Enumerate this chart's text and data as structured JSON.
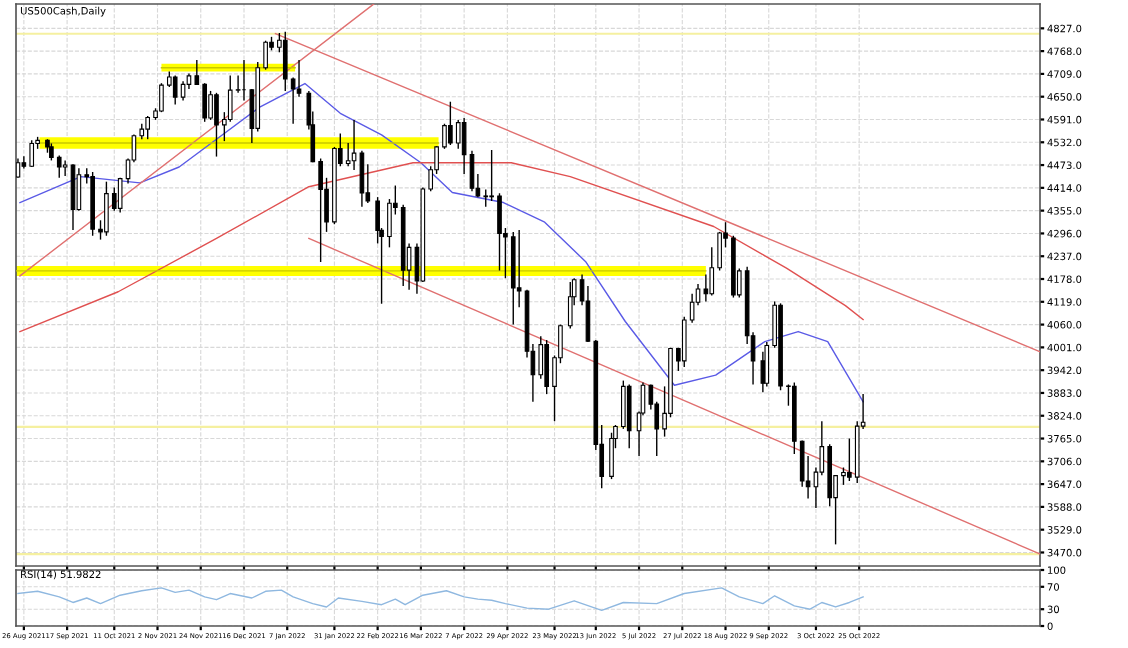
{
  "chart_data": [
    {
      "type": "candlestick",
      "title": "US500Cash,Daily",
      "grid": true,
      "tick_labels": "y",
      "xlim": [
        "2021-08-22",
        "2023-01-25"
      ],
      "ylim": [
        3435,
        4890
      ],
      "yticks": [
        {
          "value": 3470,
          "label": "3470.0"
        },
        {
          "value": 3529,
          "label": "3529.0"
        },
        {
          "value": 3588,
          "label": "3588.0"
        },
        {
          "value": 3647,
          "label": "3647.0"
        },
        {
          "value": 3706,
          "label": "3706.0"
        },
        {
          "value": 3765,
          "label": "3765.0"
        },
        {
          "value": 3824,
          "label": "3824.0"
        },
        {
          "value": 3883,
          "label": "3883.0"
        },
        {
          "value": 3942,
          "label": "3942.0"
        },
        {
          "value": 4001,
          "label": "4001.0"
        },
        {
          "value": 4060,
          "label": "4060.0"
        },
        {
          "value": 4119,
          "label": "4119.0"
        },
        {
          "value": 4178,
          "label": "4178.0"
        },
        {
          "value": 4237,
          "label": "4237.0"
        },
        {
          "value": 4296,
          "label": "4296.0"
        },
        {
          "value": 4355,
          "label": "4355.0"
        },
        {
          "value": 4414,
          "label": "4414.0"
        },
        {
          "value": 4473,
          "label": "4473.0"
        },
        {
          "value": 4532,
          "label": "4532.0"
        },
        {
          "value": 4591,
          "label": "4591.0"
        },
        {
          "value": 4650,
          "label": "4650.0"
        },
        {
          "value": 4709,
          "label": "4709.0"
        },
        {
          "value": 4768,
          "label": "4768.0"
        },
        {
          "value": 4827,
          "label": "4827.0"
        }
      ],
      "x": [
        "2021-08-23",
        "2021-08-26",
        "2021-08-30",
        "2021-09-02",
        "2021-09-07",
        "2021-09-09",
        "2021-09-13",
        "2021-09-16",
        "2021-09-20",
        "2021-09-23",
        "2021-09-27",
        "2021-09-30",
        "2021-10-04",
        "2021-10-07",
        "2021-10-11",
        "2021-10-14",
        "2021-10-18",
        "2021-10-21",
        "2021-10-25",
        "2021-10-28",
        "2021-11-01",
        "2021-11-04",
        "2021-11-08",
        "2021-11-11",
        "2021-11-15",
        "2021-11-18",
        "2021-11-22",
        "2021-11-26",
        "2021-11-29",
        "2021-12-02",
        "2021-12-06",
        "2021-12-09",
        "2021-12-13",
        "2021-12-16",
        "2021-12-20",
        "2021-12-23",
        "2021-12-27",
        "2021-12-30",
        "2022-01-03",
        "2022-01-06",
        "2022-01-10",
        "2022-01-13",
        "2022-01-18",
        "2022-01-20",
        "2022-01-24",
        "2022-01-27",
        "2022-01-31",
        "2022-02-03",
        "2022-02-07",
        "2022-02-10",
        "2022-02-14",
        "2022-02-17",
        "2022-02-22",
        "2022-02-24",
        "2022-02-28",
        "2022-03-03",
        "2022-03-07",
        "2022-03-10",
        "2022-03-14",
        "2022-03-17",
        "2022-03-21",
        "2022-03-24",
        "2022-03-28",
        "2022-03-31",
        "2022-04-04",
        "2022-04-07",
        "2022-04-11",
        "2022-04-14",
        "2022-04-18",
        "2022-04-21",
        "2022-04-25",
        "2022-04-28",
        "2022-05-02",
        "2022-05-05",
        "2022-05-09",
        "2022-05-12",
        "2022-05-16",
        "2022-05-19",
        "2022-05-23",
        "2022-05-26",
        "2022-05-31",
        "2022-06-02",
        "2022-06-06",
        "2022-06-09",
        "2022-06-13",
        "2022-06-16",
        "2022-06-21",
        "2022-06-23",
        "2022-06-27",
        "2022-06-30",
        "2022-07-05",
        "2022-07-07",
        "2022-07-11",
        "2022-07-14",
        "2022-07-18",
        "2022-07-21",
        "2022-07-25",
        "2022-07-28",
        "2022-08-01",
        "2022-08-04",
        "2022-08-08",
        "2022-08-11",
        "2022-08-15",
        "2022-08-18",
        "2022-08-22",
        "2022-08-25",
        "2022-08-29",
        "2022-09-01",
        "2022-09-06",
        "2022-09-08",
        "2022-09-12",
        "2022-09-15",
        "2022-09-19",
        "2022-09-22",
        "2022-09-26",
        "2022-09-29",
        "2022-10-03",
        "2022-10-06",
        "2022-10-10",
        "2022-10-13",
        "2022-10-17",
        "2022-10-20",
        "2022-10-24",
        "2022-10-27"
      ],
      "ohlc": [
        [
          4442,
          4490,
          4440,
          4479
        ],
        [
          4479,
          4496,
          4464,
          4470
        ],
        [
          4470,
          4537,
          4468,
          4529
        ],
        [
          4529,
          4546,
          4515,
          4537
        ],
        [
          4537,
          4540,
          4505,
          4520
        ],
        [
          4520,
          4529,
          4485,
          4493
        ],
        [
          4493,
          4498,
          4440,
          4468
        ],
        [
          4468,
          4485,
          4445,
          4473
        ],
        [
          4473,
          4475,
          4305,
          4358
        ],
        [
          4358,
          4465,
          4355,
          4448
        ],
        [
          4448,
          4465,
          4425,
          4443
        ],
        [
          4443,
          4455,
          4290,
          4307
        ],
        [
          4307,
          4330,
          4280,
          4300
        ],
        [
          4300,
          4430,
          4290,
          4399
        ],
        [
          4399,
          4415,
          4355,
          4361
        ],
        [
          4361,
          4440,
          4350,
          4438
        ],
        [
          4438,
          4490,
          4425,
          4486
        ],
        [
          4486,
          4552,
          4480,
          4549
        ],
        [
          4549,
          4580,
          4540,
          4566
        ],
        [
          4566,
          4600,
          4540,
          4596
        ],
        [
          4596,
          4620,
          4590,
          4613
        ],
        [
          4613,
          4685,
          4610,
          4680
        ],
        [
          4680,
          4715,
          4675,
          4701
        ],
        [
          4701,
          4705,
          4630,
          4649
        ],
        [
          4649,
          4690,
          4640,
          4682
        ],
        [
          4682,
          4710,
          4670,
          4704
        ],
        [
          4704,
          4745,
          4680,
          4682
        ],
        [
          4682,
          4685,
          4585,
          4595
        ],
        [
          4595,
          4665,
          4590,
          4655
        ],
        [
          4655,
          4660,
          4495,
          4577
        ],
        [
          4577,
          4610,
          4535,
          4591
        ],
        [
          4591,
          4705,
          4585,
          4667
        ],
        [
          4667,
          4705,
          4660,
          4668
        ],
        [
          4668,
          4745,
          4640,
          4668
        ],
        [
          4668,
          4670,
          4530,
          4568
        ],
        [
          4568,
          4740,
          4560,
          4725
        ],
        [
          4725,
          4795,
          4720,
          4791
        ],
        [
          4791,
          4805,
          4770,
          4778
        ],
        [
          4778,
          4815,
          4765,
          4796
        ],
        [
          4796,
          4818,
          4665,
          4696
        ],
        [
          4696,
          4700,
          4580,
          4670
        ],
        [
          4670,
          4745,
          4650,
          4659
        ],
        [
          4659,
          4665,
          4565,
          4577
        ],
        [
          4577,
          4612,
          4480,
          4482
        ],
        [
          4482,
          4490,
          4222,
          4410
        ],
        [
          4410,
          4440,
          4300,
          4326
        ],
        [
          4326,
          4520,
          4320,
          4516
        ],
        [
          4516,
          4555,
          4470,
          4477
        ],
        [
          4477,
          4530,
          4470,
          4484
        ],
        [
          4484,
          4590,
          4460,
          4504
        ],
        [
          4504,
          4510,
          4365,
          4401
        ],
        [
          4401,
          4475,
          4375,
          4380
        ],
        [
          4380,
          4390,
          4270,
          4304
        ],
        [
          4304,
          4310,
          4114,
          4288
        ],
        [
          4288,
          4385,
          4260,
          4374
        ],
        [
          4374,
          4420,
          4345,
          4363
        ],
        [
          4363,
          4370,
          4160,
          4201
        ],
        [
          4201,
          4270,
          4150,
          4260
        ],
        [
          4260,
          4270,
          4140,
          4173
        ],
        [
          4173,
          4415,
          4170,
          4411
        ],
        [
          4411,
          4470,
          4405,
          4461
        ],
        [
          4461,
          4522,
          4450,
          4520
        ],
        [
          4520,
          4580,
          4515,
          4575
        ],
        [
          4575,
          4637,
          4525,
          4530
        ],
        [
          4530,
          4590,
          4515,
          4583
        ],
        [
          4583,
          4595,
          4450,
          4500
        ],
        [
          4500,
          4510,
          4405,
          4413
        ],
        [
          4413,
          4450,
          4390,
          4393
        ],
        [
          4393,
          4410,
          4365,
          4391
        ],
        [
          4391,
          4512,
          4380,
          4393
        ],
        [
          4393,
          4400,
          4200,
          4296
        ],
        [
          4296,
          4310,
          4180,
          4287
        ],
        [
          4287,
          4300,
          4060,
          4155
        ],
        [
          4155,
          4305,
          4105,
          4147
        ],
        [
          4147,
          4150,
          3975,
          3991
        ],
        [
          3991,
          4010,
          3860,
          3930
        ],
        [
          3930,
          4030,
          3920,
          4008
        ],
        [
          4008,
          4020,
          3880,
          3900
        ],
        [
          3900,
          3980,
          3810,
          3974
        ],
        [
          3974,
          4060,
          3960,
          4057
        ],
        [
          4057,
          4170,
          4050,
          4132
        ],
        [
          4132,
          4180,
          4110,
          4176
        ],
        [
          4176,
          4190,
          4110,
          4121
        ],
        [
          4121,
          4160,
          4015,
          4017
        ],
        [
          4017,
          4020,
          3735,
          3750
        ],
        [
          3750,
          3800,
          3636,
          3667
        ],
        [
          3667,
          3780,
          3660,
          3765
        ],
        [
          3765,
          3800,
          3740,
          3796
        ],
        [
          3796,
          3915,
          3790,
          3900
        ],
        [
          3900,
          3905,
          3740,
          3785
        ],
        [
          3785,
          3835,
          3720,
          3831
        ],
        [
          3831,
          3910,
          3825,
          3903
        ],
        [
          3903,
          3905,
          3840,
          3854
        ],
        [
          3854,
          3860,
          3720,
          3790
        ],
        [
          3790,
          3900,
          3770,
          3830
        ],
        [
          3830,
          4000,
          3820,
          3998
        ],
        [
          3998,
          4000,
          3940,
          3966
        ],
        [
          3966,
          4080,
          3950,
          4072
        ],
        [
          4072,
          4140,
          4065,
          4118
        ],
        [
          4118,
          4165,
          4110,
          4152
        ],
        [
          4152,
          4190,
          4120,
          4140
        ],
        [
          4140,
          4260,
          4135,
          4207
        ],
        [
          4207,
          4300,
          4200,
          4297
        ],
        [
          4297,
          4325,
          4260,
          4284
        ],
        [
          4284,
          4290,
          4130,
          4137
        ],
        [
          4137,
          4205,
          4130,
          4199
        ],
        [
          4199,
          4210,
          4010,
          4031
        ],
        [
          4031,
          4040,
          3905,
          3966
        ],
        [
          3966,
          3990,
          3885,
          3908
        ],
        [
          3908,
          4015,
          3900,
          4006
        ],
        [
          4006,
          4120,
          4000,
          4110
        ],
        [
          4110,
          4115,
          3890,
          3901
        ],
        [
          3901,
          3905,
          3850,
          3900
        ],
        [
          3900,
          3910,
          3725,
          3758
        ],
        [
          3758,
          3760,
          3640,
          3655
        ],
        [
          3655,
          3720,
          3610,
          3640
        ],
        [
          3640,
          3690,
          3585,
          3678
        ],
        [
          3678,
          3810,
          3670,
          3744
        ],
        [
          3744,
          3750,
          3590,
          3612
        ],
        [
          3612,
          3670,
          3491,
          3669
        ],
        [
          3669,
          3690,
          3645,
          3677
        ],
        [
          3677,
          3765,
          3655,
          3665
        ],
        [
          3665,
          3810,
          3650,
          3797
        ],
        [
          3797,
          3880,
          3790,
          3807
        ]
      ],
      "series": [
        {
          "type": "line",
          "color": "#5a5ae6",
          "x": [
            "2021-08-24",
            "2021-09-24",
            "2021-10-24",
            "2021-11-13",
            "2021-12-24",
            "2022-01-16",
            "2022-02-03",
            "2022-02-24",
            "2022-03-16",
            "2022-04-01",
            "2022-04-27",
            "2022-05-18",
            "2022-06-08",
            "2022-06-28",
            "2022-07-23",
            "2022-08-13",
            "2022-09-07",
            "2022-09-24",
            "2022-10-09",
            "2022-10-27"
          ],
          "values": [
            4376,
            4443,
            4427,
            4468,
            4623,
            4684,
            4607,
            4551,
            4479,
            4402,
            4376,
            4325,
            4222,
            4068,
            3903,
            3929,
            4016,
            4042,
            4016,
            3860
          ]
        },
        {
          "type": "line",
          "color": "#e05050",
          "x": [
            "2021-08-24",
            "2021-10-13",
            "2021-12-02",
            "2022-01-18",
            "2022-03-12",
            "2022-05-01",
            "2022-05-31",
            "2022-08-12",
            "2022-09-18",
            "2022-10-18",
            "2022-10-27"
          ],
          "values": [
            4042,
            4145,
            4283,
            4417,
            4479,
            4479,
            4443,
            4314,
            4206,
            4109,
            4073
          ]
        },
        {
          "type": "line",
          "color": "#e07070",
          "x": [
            "2022-01-01",
            "2023-01-25"
          ],
          "values": [
            4813,
            3990
          ]
        },
        {
          "type": "line",
          "color": "#e07070",
          "x": [
            "2022-01-18",
            "2023-01-25"
          ],
          "values": [
            4283,
            3466
          ]
        },
        {
          "type": "line",
          "color": "#e07070",
          "x": [
            "2021-08-24",
            "2022-02-20"
          ],
          "values": [
            4186,
            4890
          ]
        },
        {
          "type": "line",
          "color": "#c8c800",
          "x": [
            "2021-11-04",
            "2022-01-11"
          ],
          "values": [
            4725,
            4725
          ],
          "lower": [
            4715,
            4715
          ],
          "upper": [
            4735,
            4735
          ]
        },
        {
          "type": "line",
          "color": "#c8c800",
          "x": [
            "2021-09-03",
            "2022-03-25"
          ],
          "values": [
            4530,
            4530
          ],
          "lower": [
            4515,
            4515
          ],
          "upper": [
            4545,
            4545
          ]
        },
        {
          "type": "line",
          "color": "#c8c800",
          "x": [
            "2021-08-22",
            "2022-08-08"
          ],
          "values": [
            4199,
            4199
          ],
          "lower": [
            4186,
            4186
          ],
          "upper": [
            4212,
            4212
          ]
        }
      ],
      "ref_lines": [
        {
          "axis": "y",
          "value": 4813,
          "color": "#f5f0a0"
        },
        {
          "axis": "y",
          "value": 3795,
          "color": "#f5f0a0"
        },
        {
          "axis": "y",
          "value": 3466,
          "color": "#f5f0a0"
        }
      ]
    },
    {
      "type": "line",
      "title": "RSI(14) 51.9822",
      "grid": true,
      "xlim": [
        "2021-08-22",
        "2023-01-25"
      ],
      "ylim": [
        0,
        100
      ],
      "yticks": [
        0,
        30,
        70,
        100
      ],
      "xticks": [
        {
          "value": "2021-08-26",
          "label": "26 Aug 2021"
        },
        {
          "value": "2021-09-17",
          "label": "17 Sep 2021"
        },
        {
          "value": "2021-10-11",
          "label": "11 Oct 2021"
        },
        {
          "value": "2021-11-02",
          "label": "2 Nov 2021"
        },
        {
          "value": "2021-11-24",
          "label": "24 Nov 2021"
        },
        {
          "value": "2021-12-16",
          "label": "16 Dec 2021"
        },
        {
          "value": "2022-01-07",
          "label": "7 Jan 2022"
        },
        {
          "value": "2022-01-31",
          "label": "31 Jan 2022"
        },
        {
          "value": "2022-02-22",
          "label": "22 Feb 2022"
        },
        {
          "value": "2022-03-16",
          "label": "16 Mar 2022"
        },
        {
          "value": "2022-04-07",
          "label": "7 Apr 2022"
        },
        {
          "value": "2022-04-29",
          "label": "29 Apr 2022"
        },
        {
          "value": "2022-05-23",
          "label": "23 May 2022"
        },
        {
          "value": "2022-06-13",
          "label": "13 Jun 2022"
        },
        {
          "value": "2022-07-05",
          "label": "5 Jul 2022"
        },
        {
          "value": "2022-07-27",
          "label": "27 Jul 2022"
        },
        {
          "value": "2022-08-18",
          "label": "18 Aug 2022"
        },
        {
          "value": "2022-09-09",
          "label": "9 Sep 2022"
        },
        {
          "value": "2022-10-03",
          "label": "3 Oct 2022"
        },
        {
          "value": "2022-10-25",
          "label": "25 Oct 2022"
        }
      ],
      "series": [
        {
          "color": "#8fb8e0",
          "x": [
            "2021-08-23",
            "2021-09-02",
            "2021-09-13",
            "2021-09-20",
            "2021-09-27",
            "2021-10-04",
            "2021-10-14",
            "2021-10-25",
            "2021-11-04",
            "2021-11-11",
            "2021-11-18",
            "2021-11-26",
            "2021-12-02",
            "2021-12-09",
            "2021-12-20",
            "2021-12-27",
            "2022-01-04",
            "2022-01-10",
            "2022-01-20",
            "2022-01-27",
            "2022-02-02",
            "2022-02-14",
            "2022-02-24",
            "2022-03-03",
            "2022-03-08",
            "2022-03-17",
            "2022-03-29",
            "2022-04-07",
            "2022-04-14",
            "2022-04-21",
            "2022-04-28",
            "2022-05-09",
            "2022-05-20",
            "2022-06-02",
            "2022-06-16",
            "2022-06-27",
            "2022-07-14",
            "2022-07-28",
            "2022-08-16",
            "2022-08-25",
            "2022-09-06",
            "2022-09-12",
            "2022-09-22",
            "2022-09-30",
            "2022-10-06",
            "2022-10-13",
            "2022-10-20",
            "2022-10-27"
          ],
          "values": [
            58,
            62,
            52,
            42,
            50,
            40,
            55,
            63,
            68,
            60,
            64,
            52,
            47,
            58,
            50,
            62,
            64,
            52,
            40,
            34,
            50,
            44,
            38,
            48,
            38,
            55,
            63,
            52,
            48,
            46,
            40,
            32,
            30,
            45,
            28,
            42,
            40,
            58,
            68,
            52,
            40,
            54,
            36,
            30,
            42,
            34,
            42,
            52
          ]
        }
      ]
    }
  ]
}
